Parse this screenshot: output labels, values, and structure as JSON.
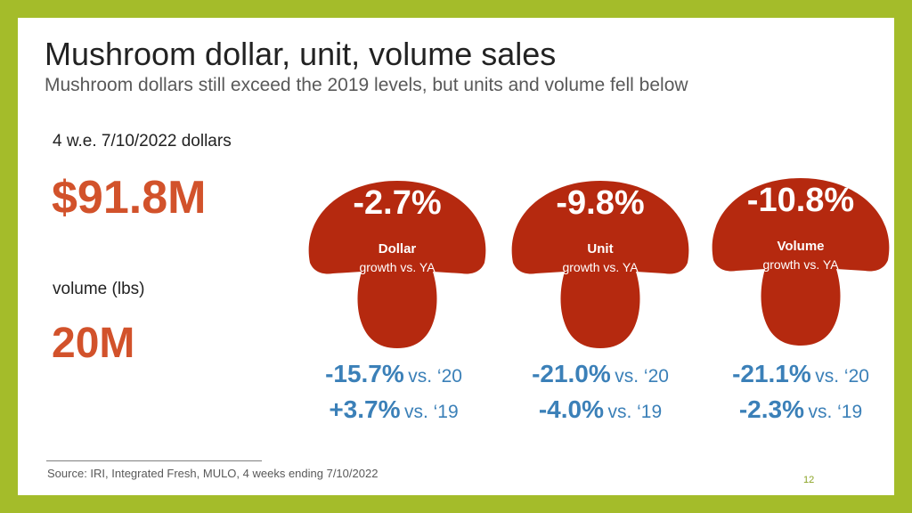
{
  "slide": {
    "title": "Mushroom dollar, unit, volume sales",
    "subtitle": "Mushroom dollars still exceed the 2019 levels, but units and volume fell below",
    "dollars_label": "4 w.e. 7/10/2022 dollars",
    "dollars_value": "$91.8M",
    "volume_label": "volume (lbs)",
    "volume_value": "20M",
    "source": "Source: IRI, Integrated Fresh, MULO, 4 weeks ending 7/10/2022",
    "page_number": "12"
  },
  "colors": {
    "frame": "#a4bc2a",
    "accent_orange": "#d2522b",
    "mushroom": "#b5290f",
    "comparison_blue": "#3b80b8"
  },
  "icons": [
    "mushroom-icon"
  ],
  "metrics": [
    {
      "pct": "-2.7%",
      "metric": "Dollar",
      "growth": "growth vs. YA",
      "vs20_value": "-15.7%",
      "vs20_suffix": "vs. ‘20",
      "vs19_value": "+3.7%",
      "vs19_suffix": "vs. ‘19"
    },
    {
      "pct": "-9.8%",
      "metric": "Unit",
      "growth": "growth vs. YA",
      "vs20_value": "-21.0%",
      "vs20_suffix": "vs. ‘20",
      "vs19_value": "-4.0%",
      "vs19_suffix": "vs. ‘19"
    },
    {
      "pct": "-10.8%",
      "metric": "Volume",
      "growth": "growth vs. YA",
      "vs20_value": "-21.1%",
      "vs20_suffix": "vs. ‘20",
      "vs19_value": "-2.3%",
      "vs19_suffix": "vs. ‘19"
    }
  ]
}
